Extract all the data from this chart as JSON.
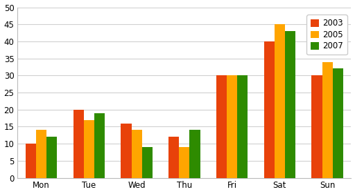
{
  "categories": [
    "Mon",
    "Tue",
    "Wed",
    "Thu",
    "Fri",
    "Sat",
    "Sun"
  ],
  "series": {
    "2003": [
      10,
      20,
      16,
      12,
      30,
      40,
      30
    ],
    "2005": [
      14,
      17,
      14,
      9,
      30,
      45,
      34
    ],
    "2007": [
      12,
      19,
      9,
      14,
      30,
      43,
      32
    ]
  },
  "colors": {
    "2003": "#E8420A",
    "2005": "#FFA500",
    "2007": "#2E8B00"
  },
  "legend_labels": [
    "2003",
    "2005",
    "2007"
  ],
  "ylim": [
    0,
    50
  ],
  "yticks": [
    0,
    5,
    10,
    15,
    20,
    25,
    30,
    35,
    40,
    45,
    50
  ],
  "background_color": "#ffffff",
  "grid_color": "#d0d0d0",
  "bar_width": 0.22,
  "legend_fontsize": 8.5
}
